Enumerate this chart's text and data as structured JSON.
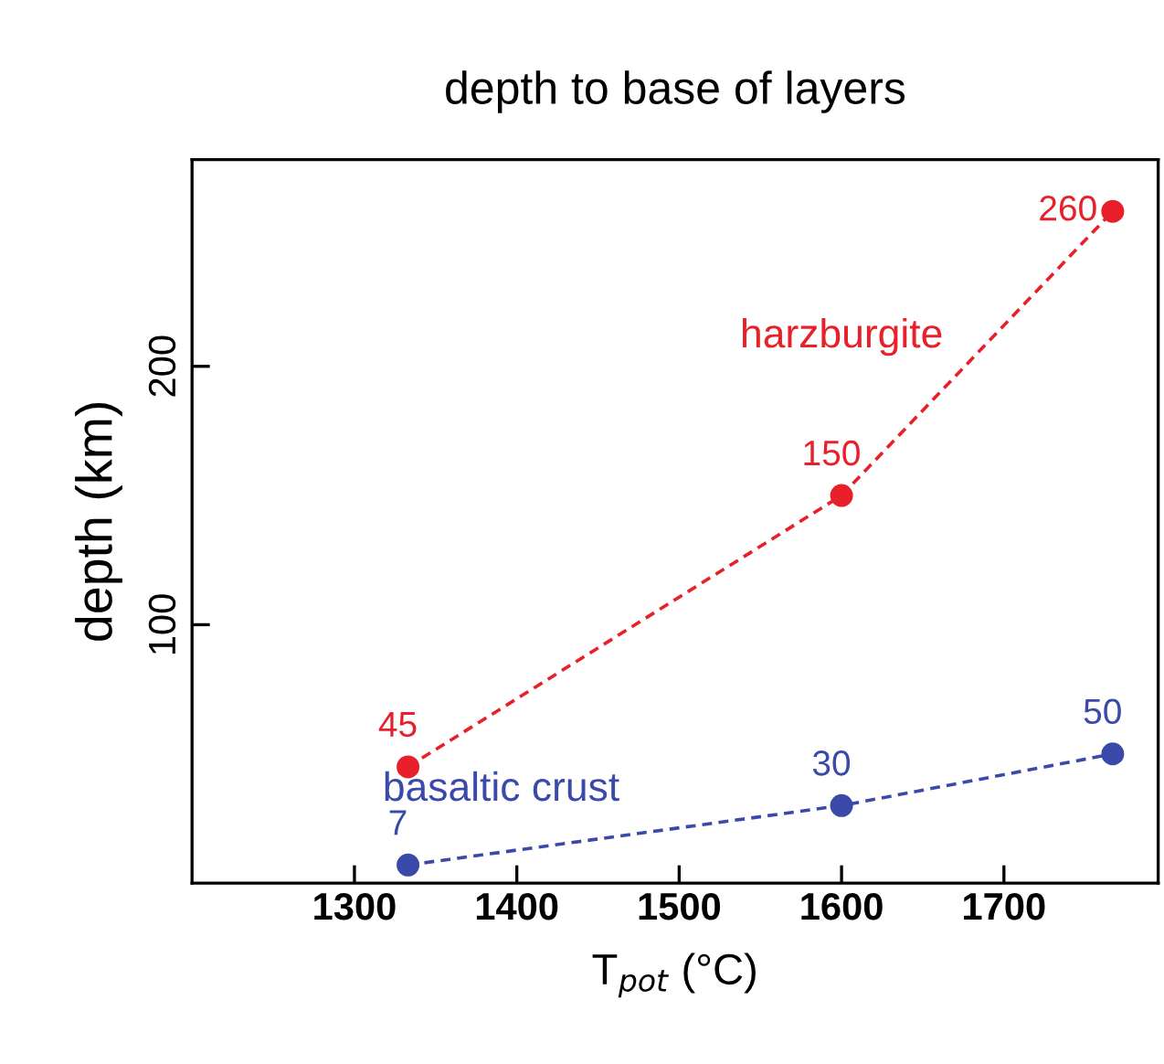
{
  "chart_data": {
    "type": "line",
    "title": "depth to base of layers",
    "xlabel": "T$_{pot}$ (°C)",
    "ylabel": "depth (km)",
    "x": [
      1333,
      1600,
      1767
    ],
    "series": [
      {
        "name": "harzburgite",
        "color": "#e8202a",
        "values": [
          45,
          150,
          260
        ]
      },
      {
        "name": "basaltic crust",
        "color": "#3b4aa8",
        "values": [
          7,
          30,
          50
        ]
      }
    ],
    "xlim": [
      1200,
      1795
    ],
    "xticks": [
      1300,
      1400,
      1500,
      1600,
      1700
    ],
    "ylim": [
      0,
      280
    ],
    "yticks": [
      100,
      200
    ],
    "grid": false,
    "legend": false,
    "marker": "circle",
    "line_style": "dashed",
    "data_labels": true
  }
}
